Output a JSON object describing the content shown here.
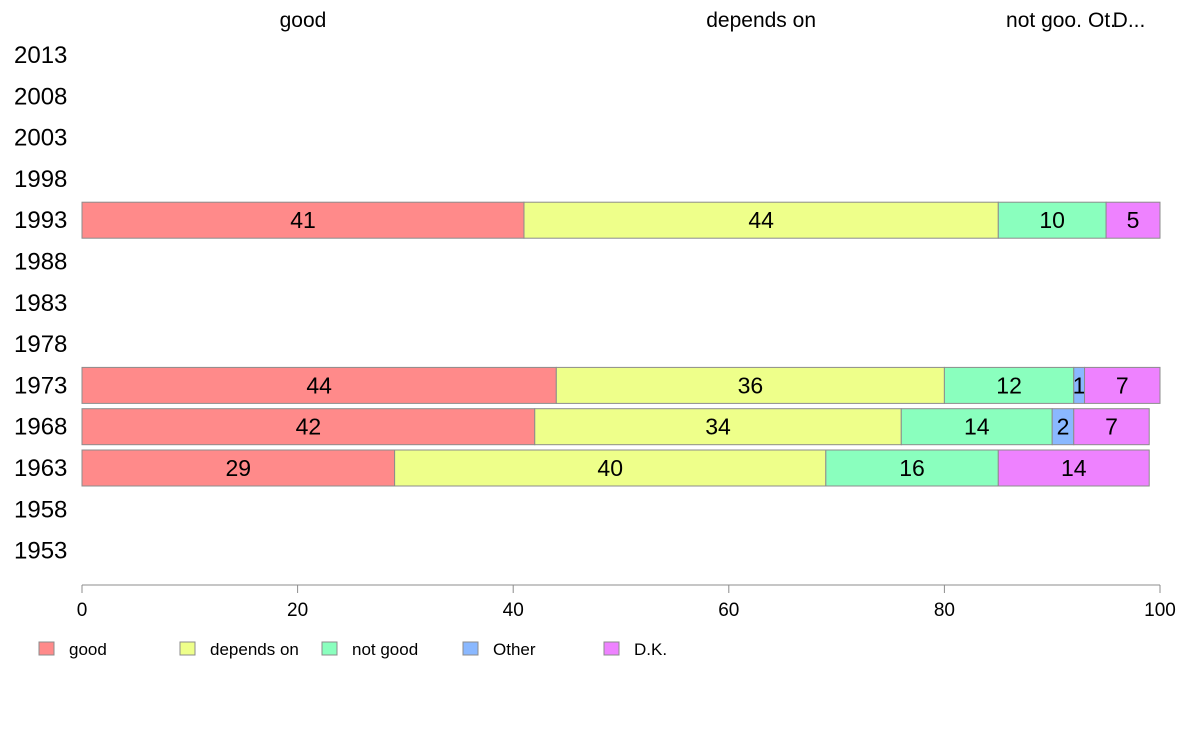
{
  "chart_data": {
    "type": "bar",
    "orientation": "horizontal",
    "stacked": true,
    "categories": [
      "2013",
      "2008",
      "2003",
      "1998",
      "1993",
      "1988",
      "1983",
      "1978",
      "1973",
      "1968",
      "1963",
      "1958",
      "1953"
    ],
    "series": [
      {
        "name": "good",
        "color": "#ff8a8a",
        "values": [
          null,
          null,
          null,
          null,
          41,
          null,
          null,
          null,
          44,
          42,
          29,
          null,
          null
        ]
      },
      {
        "name": "depends on",
        "color": "#eeff8a",
        "values": [
          null,
          null,
          null,
          null,
          44,
          null,
          null,
          null,
          36,
          34,
          40,
          null,
          null
        ]
      },
      {
        "name": "not good",
        "color": "#8affbe",
        "values": [
          null,
          null,
          null,
          null,
          10,
          null,
          null,
          null,
          12,
          14,
          16,
          null,
          null
        ]
      },
      {
        "name": "Other",
        "color": "#8ab8ff",
        "values": [
          null,
          null,
          null,
          null,
          0,
          null,
          null,
          null,
          1,
          2,
          0,
          null,
          null
        ]
      },
      {
        "name": "D.K.",
        "color": "#ee82ff",
        "values": [
          null,
          null,
          null,
          null,
          5,
          null,
          null,
          null,
          7,
          7,
          14,
          null,
          null
        ]
      }
    ],
    "xlim": [
      0,
      100
    ],
    "xticks": [
      0,
      20,
      40,
      60,
      80,
      100
    ],
    "top_labels": [
      "good",
      "depends on",
      "not goo.",
      "Ot.",
      "D..."
    ],
    "legend": {
      "position": "bottom",
      "entries": [
        "good",
        "depends on",
        "not good",
        "Other",
        "D.K."
      ]
    },
    "grid": false,
    "title": "",
    "xlabel": "",
    "ylabel": ""
  }
}
